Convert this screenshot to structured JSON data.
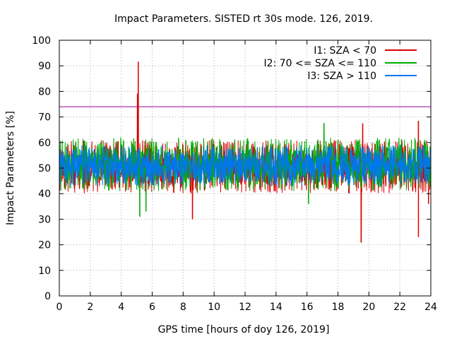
{
  "chart_data": {
    "type": "line",
    "title": "Impact Parameters. SISTED rt 30s mode. 126, 2019.",
    "xlabel": "GPS time [hours of doy 126, 2019]",
    "ylabel": "Impact Parameters [%]",
    "xlim": [
      0,
      24
    ],
    "ylim": [
      0,
      100
    ],
    "xticks": [
      0,
      2,
      4,
      6,
      8,
      10,
      12,
      14,
      16,
      18,
      20,
      22,
      24
    ],
    "yticks": [
      0,
      10,
      20,
      30,
      40,
      50,
      60,
      70,
      80,
      90,
      100
    ],
    "grid": true,
    "legend_position": "top-right",
    "threshold": {
      "value": 74,
      "color": "#990099"
    },
    "series": [
      {
        "name": "I1: SZA < 70",
        "color": "#dd0000",
        "typical_range": [
          40,
          61
        ],
        "spikes": [
          {
            "x": 5.1,
            "y": 91.5
          },
          {
            "x": 5.05,
            "y": 79
          },
          {
            "x": 8.6,
            "y": 30
          },
          {
            "x": 19.5,
            "y": 21
          },
          {
            "x": 19.6,
            "y": 67.5
          },
          {
            "x": 23.2,
            "y": 23
          },
          {
            "x": 23.2,
            "y": 68.5
          },
          {
            "x": 23.85,
            "y": 36
          }
        ]
      },
      {
        "name": "I2: 70 <= SZA <= 110",
        "color": "#00aa00",
        "typical_range": [
          41,
          62
        ],
        "spikes": [
          {
            "x": 5.2,
            "y": 31
          },
          {
            "x": 5.6,
            "y": 33
          },
          {
            "x": 17.1,
            "y": 67.5
          },
          {
            "x": 16.1,
            "y": 36
          }
        ]
      },
      {
        "name": "I3: SZA > 110",
        "color": "#0077ee",
        "typical_range": [
          43,
          59
        ],
        "spikes": []
      }
    ]
  }
}
